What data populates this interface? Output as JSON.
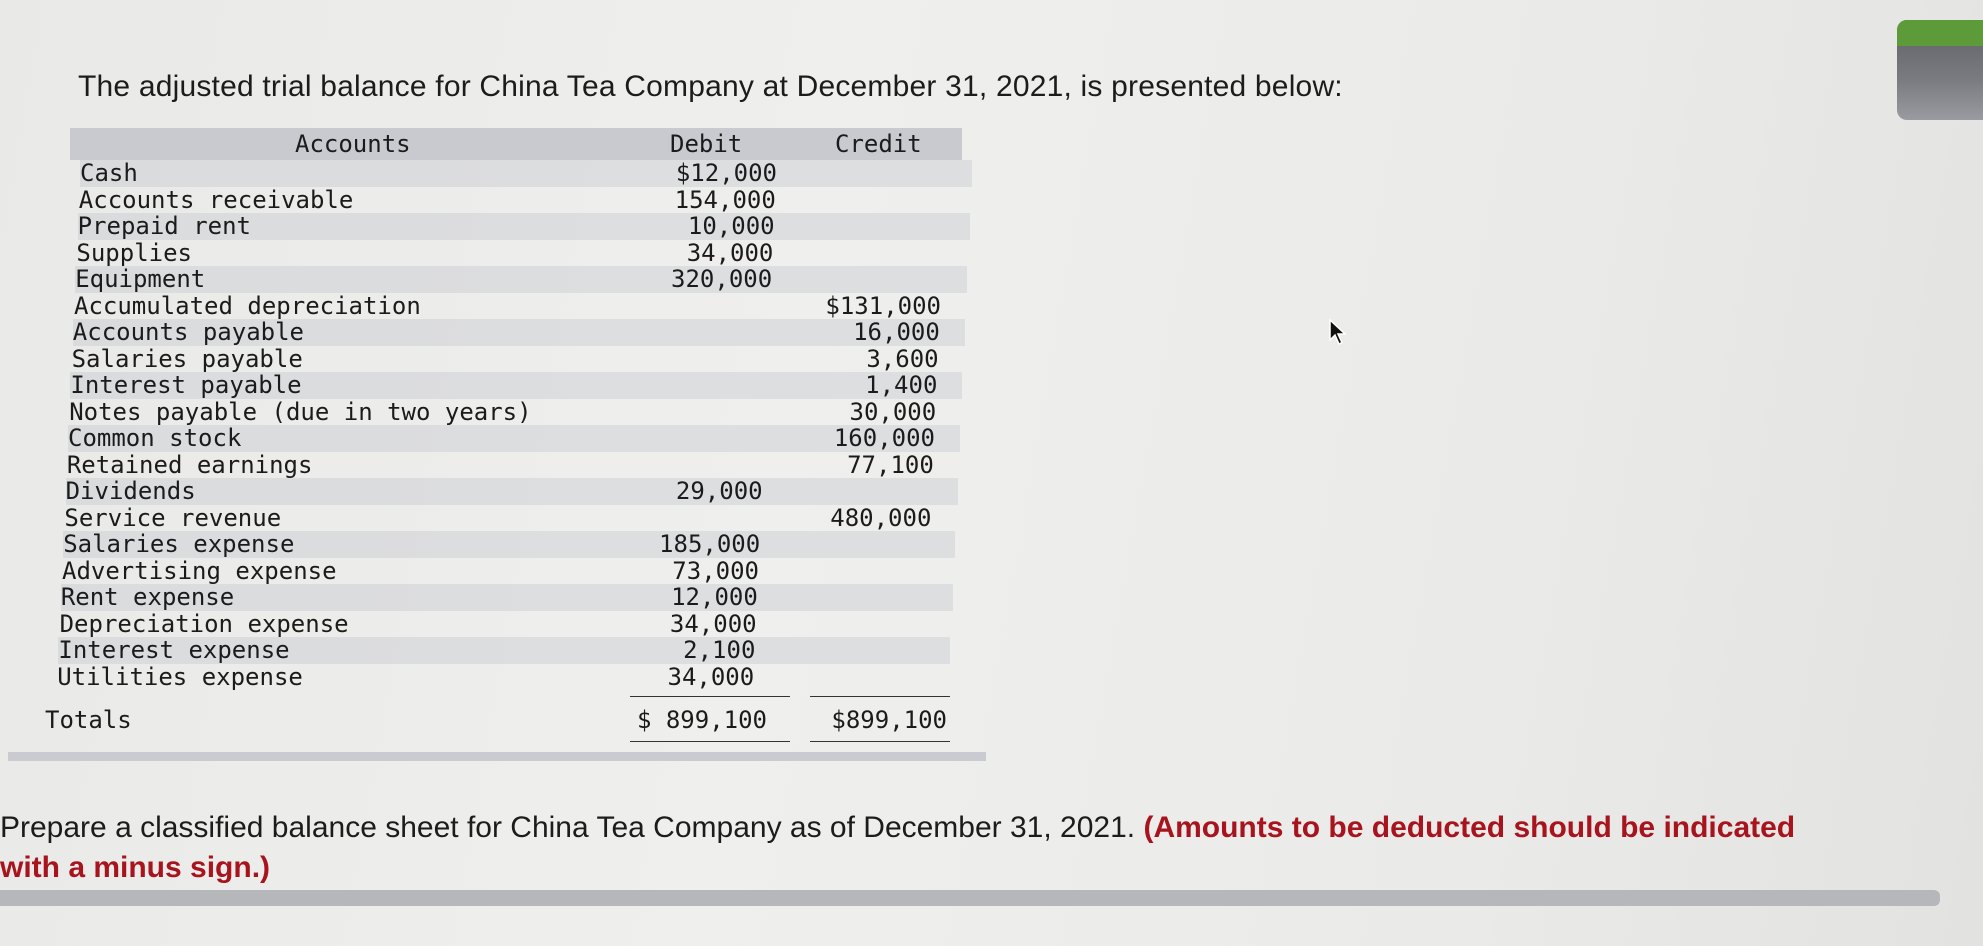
{
  "intro_text": "The adjusted trial balance for China Tea Company at December 31, 2021, is presented below:",
  "table": {
    "headers": {
      "accounts": "Accounts",
      "debit": "Debit",
      "credit": "Credit"
    },
    "rows": [
      {
        "account": "Cash",
        "debit": "$12,000",
        "credit": ""
      },
      {
        "account": "Accounts receivable",
        "debit": "154,000",
        "credit": ""
      },
      {
        "account": "Prepaid rent",
        "debit": "10,000",
        "credit": ""
      },
      {
        "account": "Supplies",
        "debit": "34,000",
        "credit": ""
      },
      {
        "account": "Equipment",
        "debit": "320,000",
        "credit": ""
      },
      {
        "account": "Accumulated depreciation",
        "debit": "",
        "credit": "$131,000"
      },
      {
        "account": "Accounts payable",
        "debit": "",
        "credit": "16,000"
      },
      {
        "account": "Salaries payable",
        "debit": "",
        "credit": "3,600"
      },
      {
        "account": "Interest payable",
        "debit": "",
        "credit": "1,400"
      },
      {
        "account": "Notes payable (due in two years)",
        "debit": "",
        "credit": "30,000"
      },
      {
        "account": "Common stock",
        "debit": "",
        "credit": "160,000"
      },
      {
        "account": "Retained earnings",
        "debit": "",
        "credit": "77,100"
      },
      {
        "account": "Dividends",
        "debit": "29,000",
        "credit": ""
      },
      {
        "account": "Service revenue",
        "debit": "",
        "credit": "480,000"
      },
      {
        "account": "Salaries expense",
        "debit": "185,000",
        "credit": ""
      },
      {
        "account": "Advertising expense",
        "debit": "73,000",
        "credit": ""
      },
      {
        "account": "Rent expense",
        "debit": "12,000",
        "credit": ""
      },
      {
        "account": "Depreciation expense",
        "debit": "34,000",
        "credit": ""
      },
      {
        "account": "Interest expense",
        "debit": "2,100",
        "credit": ""
      },
      {
        "account": "Utilities expense",
        "debit": "34,000",
        "credit": ""
      }
    ],
    "totals": {
      "label": "Totals",
      "debit": "$ 899,100",
      "credit": "$899,100"
    }
  },
  "instruction": {
    "main": "Prepare a classified balance sheet for China Tea Company as of December 31, 2021. ",
    "emphasis_line1": "(Amounts to be deducted should be indicated",
    "emphasis_line2": "with a minus sign.)"
  },
  "colors": {
    "emphasis": "#a8141e",
    "table_stripe": "#c8cad0"
  }
}
